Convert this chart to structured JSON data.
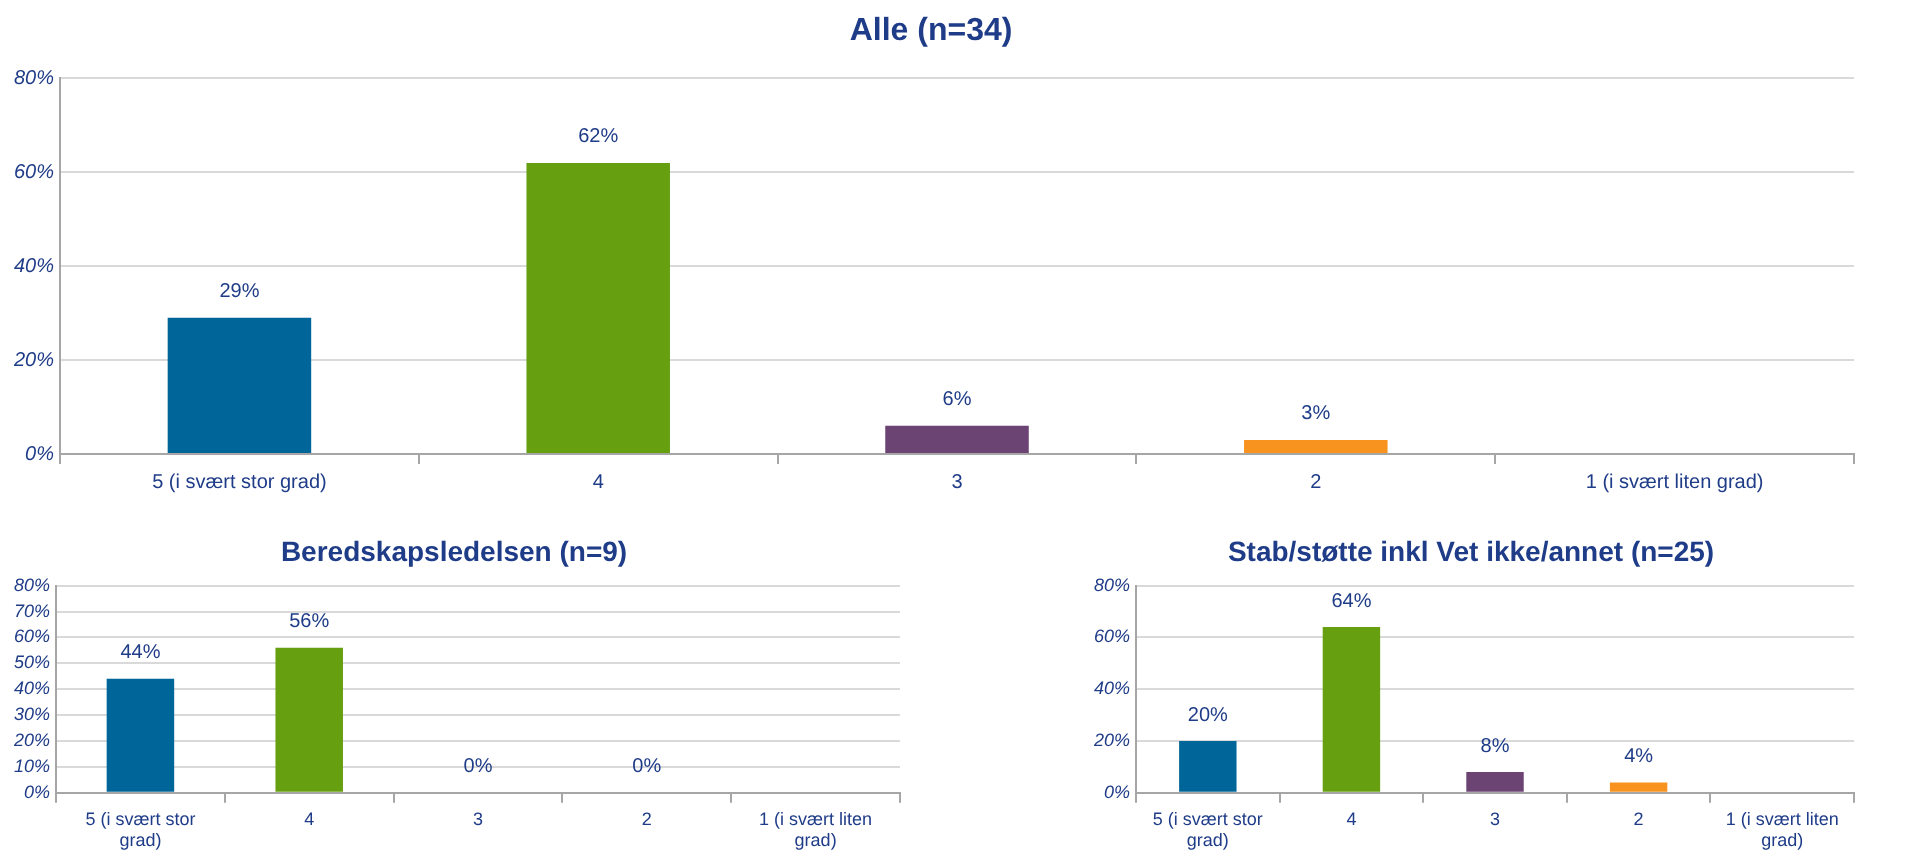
{
  "chart_data": [
    {
      "type": "bar",
      "title": "Alle (n=34)",
      "categories": [
        "5 (i svært stor grad)",
        "4",
        "3",
        "2",
        "1 (i svært liten grad)"
      ],
      "values": [
        29,
        62,
        6,
        3,
        null
      ],
      "value_labels": [
        "29%",
        "62%",
        "6%",
        "3%",
        null
      ],
      "colors": [
        "#006699",
        "#66a010",
        "#6b4474",
        "#f7931e",
        "#4f81bd"
      ],
      "ylim": [
        0,
        80
      ],
      "yticks": [
        {
          "value": 0,
          "label": "0%"
        },
        {
          "value": 20,
          "label": "20%"
        },
        {
          "value": 40,
          "label": "40%"
        },
        {
          "value": 60,
          "label": "60%"
        },
        {
          "value": 80,
          "label": "80%"
        }
      ],
      "grid": "y",
      "legend": false
    },
    {
      "type": "bar",
      "title": "Beredskapsledelsen (n=9)",
      "categories": [
        "5 (i svært stor grad)",
        "4",
        "3",
        "2",
        "1 (i svært liten grad)"
      ],
      "values": [
        44,
        56,
        0,
        0,
        null
      ],
      "value_labels": [
        "44%",
        "56%",
        "0%",
        "0%",
        null
      ],
      "colors": [
        "#006699",
        "#66a010",
        "#6b4474",
        "#f7931e",
        "#4f81bd"
      ],
      "ylim": [
        0,
        80
      ],
      "yticks": [
        {
          "value": 0,
          "label": "0%"
        },
        {
          "value": 10,
          "label": "10%"
        },
        {
          "value": 20,
          "label": "20%"
        },
        {
          "value": 30,
          "label": "30%"
        },
        {
          "value": 40,
          "label": "40%"
        },
        {
          "value": 50,
          "label": "50%"
        },
        {
          "value": 60,
          "label": "60%"
        },
        {
          "value": 70,
          "label": "70%"
        },
        {
          "value": 80,
          "label": "80%"
        }
      ],
      "grid": "y",
      "legend": false
    },
    {
      "type": "bar",
      "title": "Stab/støtte inkl Vet ikke/annet (n=25)",
      "categories": [
        "5 (i svært stor grad)",
        "4",
        "3",
        "2",
        "1 (i svært liten grad)"
      ],
      "values": [
        20,
        64,
        8,
        4,
        null
      ],
      "value_labels": [
        "20%",
        "64%",
        "8%",
        "4%",
        null
      ],
      "colors": [
        "#006699",
        "#66a010",
        "#6b4474",
        "#f7931e",
        "#4f81bd"
      ],
      "ylim": [
        0,
        80
      ],
      "yticks": [
        {
          "value": 0,
          "label": "0%"
        },
        {
          "value": 20,
          "label": "20%"
        },
        {
          "value": 40,
          "label": "40%"
        },
        {
          "value": 60,
          "label": "60%"
        },
        {
          "value": 80,
          "label": "80%"
        }
      ],
      "grid": "y",
      "legend": false
    }
  ]
}
